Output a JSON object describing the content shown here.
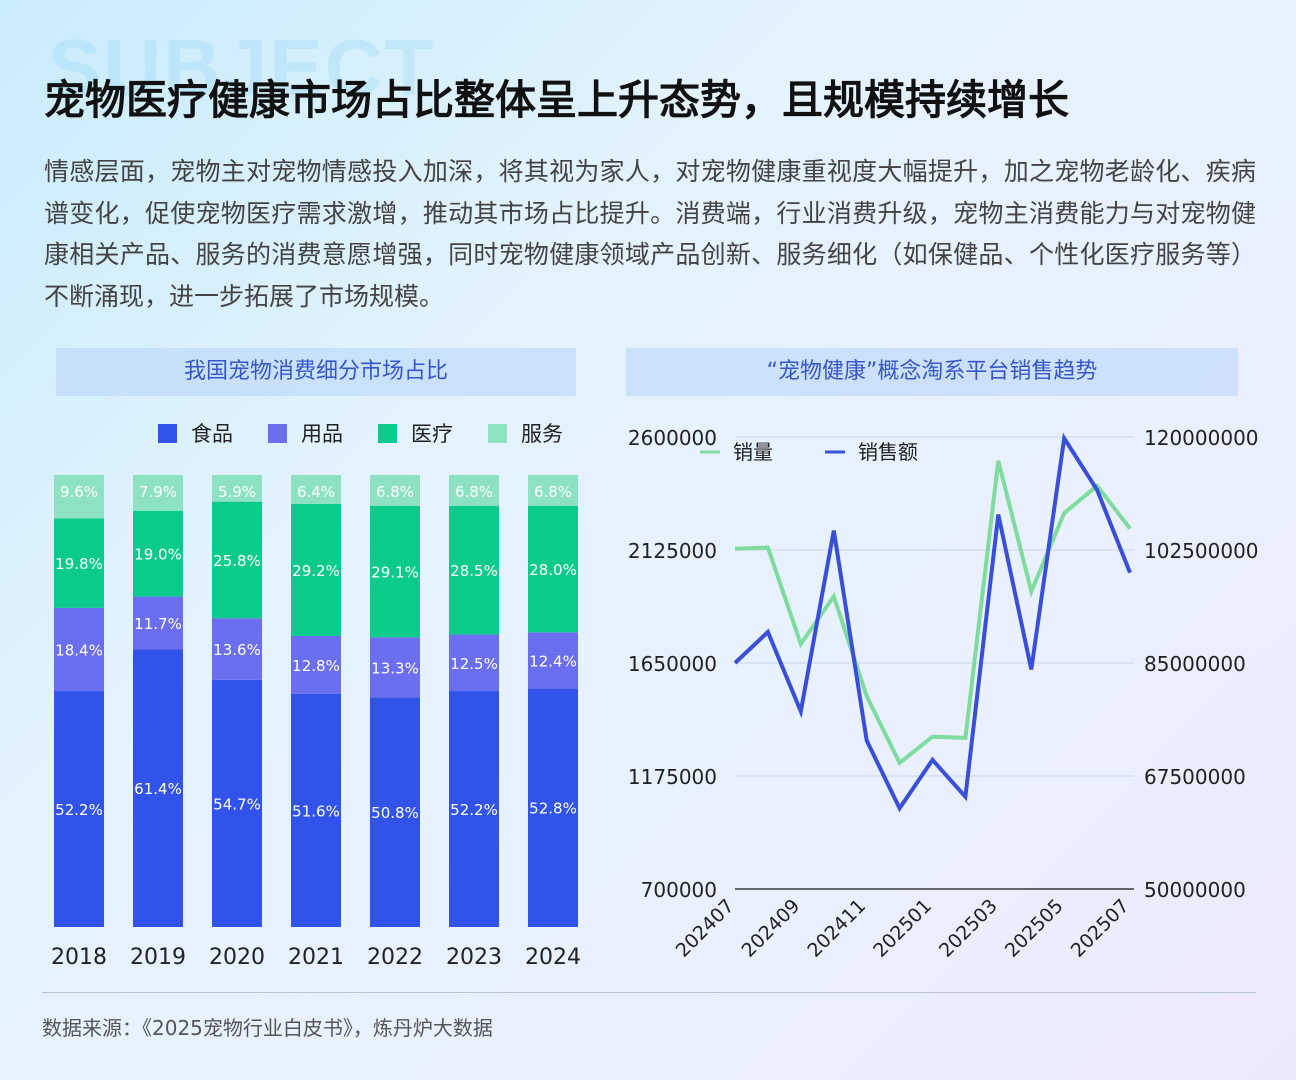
{
  "watermark": "SUBJECT",
  "title": "宠物医疗健康市场占比整体呈上升态势，且规模持续增长",
  "intro": "情感层面，宠物主对宠物情感投入加深，将其视为家人，对宠物健康重视度大幅提升，加之宠物老龄化、疾病谱变化，促使宠物医疗需求激增，推动其市场占比提升。消费端，行业消费升级，宠物主消费能力与对宠物健康相关产品、服务的消费意愿增强，同时宠物健康领域产品创新、服务细化（如保健品、个性化医疗服务等）不断涌现，进一步拓展了市场规模。",
  "source": "数据来源：《2025宠物行业白皮书》，炼丹炉大数据",
  "chart_data": [
    {
      "type": "bar",
      "stacked": true,
      "percent": true,
      "title": "我国宠物消费细分市场占比",
      "categories": [
        "2018",
        "2019",
        "2020",
        "2021",
        "2022",
        "2023",
        "2024"
      ],
      "legend_position": "top",
      "series": [
        {
          "name": "食品",
          "color": "#3153e9",
          "values": [
            52.2,
            61.4,
            54.7,
            51.6,
            50.8,
            52.2,
            52.8
          ]
        },
        {
          "name": "用品",
          "color": "#6c6ef0",
          "values": [
            18.4,
            11.7,
            13.6,
            12.8,
            13.3,
            12.5,
            12.4
          ]
        },
        {
          "name": "医疗",
          "color": "#0bcb8c",
          "values": [
            19.8,
            19.0,
            25.8,
            29.2,
            29.1,
            28.5,
            28.0
          ]
        },
        {
          "name": "服务",
          "color": "#8de2c2",
          "values": [
            9.6,
            7.9,
            5.9,
            6.4,
            6.8,
            6.8,
            6.8
          ]
        }
      ],
      "labels": [
        [
          "52.2%",
          "61.4%",
          "54.7%",
          "51.6%",
          "50.8%",
          "52.2%",
          "52.8%"
        ],
        [
          "18.4%",
          "11.7%",
          "13.6%",
          "12.8%",
          "13.3%",
          "12.5%",
          "12.4%"
        ],
        [
          "19.8%",
          "19.0%",
          "25.8%",
          "29.2%",
          "29.1%",
          "28.5%",
          "28.0%"
        ],
        [
          "9.6%",
          "7.9%",
          "5.9%",
          "6.4%",
          "6.8%",
          "6.8%",
          "6.8%"
        ]
      ]
    },
    {
      "type": "line",
      "title": "“宠物健康”概念淘系平台销售趋势",
      "x": [
        "202407",
        "202408",
        "202409",
        "202410",
        "202411",
        "202412",
        "202501",
        "202502",
        "202503",
        "202504",
        "202505",
        "202506",
        "202507"
      ],
      "x_tick_labels": [
        "202407",
        "202409",
        "202411",
        "202501",
        "202503",
        "202505",
        "202507"
      ],
      "y_left": {
        "ylim": [
          700000,
          2600000
        ],
        "ticks": [
          "700000",
          "1175000",
          "1650000",
          "2125000",
          "2600000"
        ]
      },
      "y_right": {
        "ylim": [
          50000000,
          120000000
        ],
        "ticks": [
          "50000000",
          "67500000",
          "85000000",
          "102500000",
          "120000000"
        ]
      },
      "legend_position": "top-left",
      "grid": true,
      "series": [
        {
          "name": "销量",
          "axis": "left",
          "color": "#7ddc9e",
          "values": [
            2130000,
            2135000,
            1730000,
            1930000,
            1510000,
            1230000,
            1340000,
            1335000,
            2500000,
            1950000,
            2280000,
            2395000,
            2215000
          ]
        },
        {
          "name": "销售额",
          "axis": "right",
          "color": "#3a4fd8",
          "values": [
            85000000,
            89800000,
            77500000,
            105500000,
            73000000,
            62500000,
            70000000,
            64300000,
            108000000,
            84000000,
            119800000,
            111800000,
            99000000
          ]
        }
      ]
    }
  ]
}
